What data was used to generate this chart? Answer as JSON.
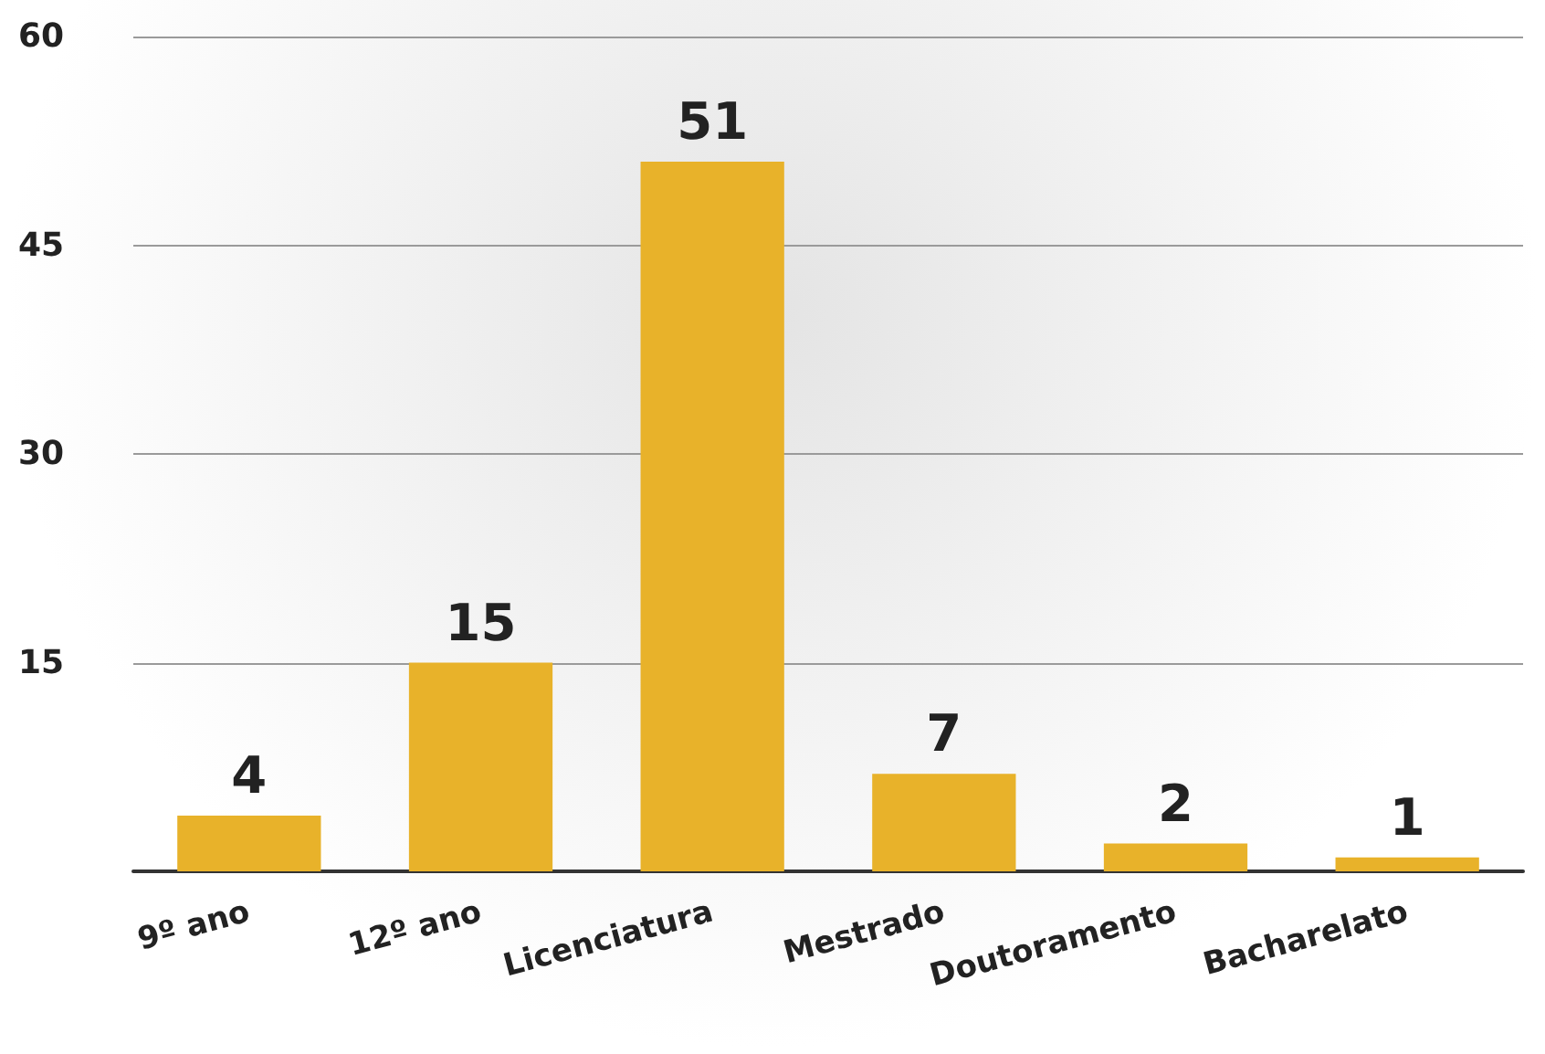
{
  "chart_data": {
    "type": "bar",
    "categories": [
      "9º ano",
      "12º ano",
      "Licenciatura",
      "Mestrado",
      "Doutoramento",
      "Bacharelato"
    ],
    "values": [
      4,
      15,
      51,
      7,
      2,
      1
    ],
    "color": "#e8b22a",
    "ylim": [
      0,
      60
    ],
    "yticks": [
      15,
      30,
      45,
      60
    ],
    "grid": "y",
    "data_labels": true
  }
}
